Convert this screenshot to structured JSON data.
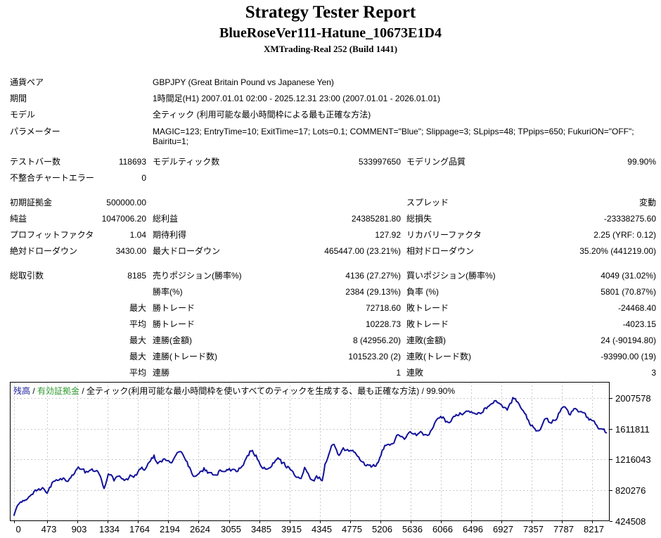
{
  "header": {
    "title": "Strategy Tester Report",
    "subtitle": "BlueRoseVer111-Hatune_10673E1D4",
    "server": "XMTrading-Real 252 (Build 1441)"
  },
  "report": {
    "summary_rows": [
      {
        "label": "通貨ペア",
        "value": "GBPJPY (Great Britain Pound vs Japanese Yen)"
      },
      {
        "label": "期間",
        "value": "1時間足(H1) 2007.01.01 02:00 - 2025.12.31 23:00 (2007.01.01 - 2026.01.01)"
      },
      {
        "label": "モデル",
        "value": "全ティック (利用可能な最小時間枠による最も正確な方法)"
      },
      {
        "label": "パラメーター",
        "lines": [
          "MAGIC=123; EntryTime=10; ExitTime=17; Lots=0.1; COMMENT=\"Blue\"; Slippage=3; SLpips=48; TPpips=650; FukuriON=\"OFF\";",
          "Bairitu=1;"
        ]
      }
    ],
    "stat_sections": [
      {
        "gap": 0,
        "rows": [
          {
            "c1l": "テストバー数",
            "c1v": "118693",
            "c2l": "モデルティック数",
            "c2v": "533997650",
            "c3l": "モデリング品質",
            "c3v": "99.90%"
          },
          {
            "c1l": "不整合チャートエラー",
            "c1v": "0",
            "c2l": "",
            "c2v": "",
            "c3l": "",
            "c3v": ""
          }
        ]
      },
      {
        "gap": 12,
        "rows": [
          {
            "c1l": "初期証拠金",
            "c1v": "500000.00",
            "c2l": "",
            "c2v": "",
            "c3l": "スプレッド",
            "c3v": "変動"
          },
          {
            "c1l": "純益",
            "c1v": "1047006.20",
            "c2l": "総利益",
            "c2v": "24385281.80",
            "c3l": "総損失",
            "c3v": "-23338275.60"
          },
          {
            "c1l": "プロフィットファクタ",
            "c1v": "1.04",
            "c2l": "期待利得",
            "c2v": "127.92",
            "c3l": "リカバリーファクタ",
            "c3v": "2.25 (YRF: 0.12)"
          },
          {
            "c1l": "絶対ドローダウン",
            "c1v": "3430.00",
            "c2l": "最大ドローダウン",
            "c2v": "465447.00 (23.21%)",
            "c3l": "相対ドローダウン",
            "c3v": "35.20% (441219.00)"
          }
        ]
      },
      {
        "gap": 12,
        "rows": [
          {
            "c1l": "総取引数",
            "c1v": "8185",
            "c2l": "売りポジション(勝率%)",
            "c2v": "4136 (27.27%)",
            "c3l": "買いポジション(勝率%)",
            "c3v": "4049 (31.02%)"
          },
          {
            "c1l": "",
            "c1v": "",
            "c2l": "勝率(%)",
            "c2v": "2384 (29.13%)",
            "c3l": "負率 (%)",
            "c3v": "5801 (70.87%)"
          },
          {
            "c1l": "",
            "c1v": "最大",
            "c2l": "勝トレード",
            "c2v": "72718.60",
            "c3l": "敗トレード",
            "c3v": "-24468.40"
          },
          {
            "c1l": "",
            "c1v": "平均",
            "c2l": "勝トレード",
            "c2v": "10228.73",
            "c3l": "敗トレード",
            "c3v": "-4023.15"
          },
          {
            "c1l": "",
            "c1v": "最大",
            "c2l": "連勝(金額)",
            "c2v": "8 (42956.20)",
            "c3l": "連敗(金額)",
            "c3v": "24 (-90194.80)"
          },
          {
            "c1l": "",
            "c1v": "最大",
            "c2l": "連勝(トレード数)",
            "c2v": "101523.20 (2)",
            "c3l": "連敗(トレード数)",
            "c3v": "-93990.00 (19)"
          },
          {
            "c1l": "",
            "c1v": "平均",
            "c2l": "連勝",
            "c2v": "1",
            "c3l": "連敗",
            "c3v": "3"
          }
        ]
      }
    ]
  },
  "chart_data": {
    "type": "line",
    "legend_parts": [
      {
        "text": "残高",
        "color": "#1c1c9c"
      },
      {
        "text": " / ",
        "color": "#000000"
      },
      {
        "text": "有効証拠金",
        "color": "#2f9a2f"
      },
      {
        "text": " / 全ティック(利用可能な最小時間枠を使いすべてのティックを生成する、最も正確な方法) / 99.90%",
        "color": "#000000"
      }
    ],
    "x_ticks": [
      0,
      473,
      903,
      1334,
      1764,
      2194,
      2624,
      3055,
      3485,
      3915,
      4345,
      4775,
      5206,
      5636,
      6066,
      6496,
      6927,
      7357,
      7787,
      8217
    ],
    "y_ticks": [
      424508,
      820276,
      1216043,
      1611811,
      2007578
    ],
    "y_domain": [
      424508,
      2215600
    ],
    "grid_on": true,
    "grid_color": "#c9c9c9",
    "border_color": "#000000",
    "series": [
      {
        "name": "残高",
        "color": "#12129a",
        "anchors": [
          [
            0,
            500000
          ],
          [
            40,
            610000
          ],
          [
            90,
            665000
          ],
          [
            160,
            700000
          ],
          [
            230,
            760000
          ],
          [
            320,
            815000
          ],
          [
            420,
            840000
          ],
          [
            470,
            820000
          ],
          [
            540,
            905000
          ],
          [
            620,
            950000
          ],
          [
            700,
            985000
          ],
          [
            770,
            940000
          ],
          [
            860,
            1040000
          ],
          [
            950,
            1115000
          ],
          [
            1010,
            1050000
          ],
          [
            1090,
            1085000
          ],
          [
            1160,
            1080000
          ],
          [
            1230,
            1000000
          ],
          [
            1280,
            860000
          ],
          [
            1340,
            1050000
          ],
          [
            1420,
            960000
          ],
          [
            1500,
            990000
          ],
          [
            1600,
            975000
          ],
          [
            1700,
            1020000
          ],
          [
            1780,
            1075000
          ],
          [
            1870,
            1115000
          ],
          [
            1940,
            1200000
          ],
          [
            1990,
            1250000
          ],
          [
            2040,
            1165000
          ],
          [
            2120,
            1205000
          ],
          [
            2200,
            1165000
          ],
          [
            2280,
            1240000
          ],
          [
            2340,
            1310000
          ],
          [
            2400,
            1280000
          ],
          [
            2460,
            1180000
          ],
          [
            2530,
            1035000
          ],
          [
            2610,
            1005000
          ],
          [
            2700,
            1100000
          ],
          [
            2770,
            1050000
          ],
          [
            2840,
            1025000
          ],
          [
            2910,
            1070000
          ],
          [
            2990,
            1055000
          ],
          [
            3060,
            1105000
          ],
          [
            3140,
            1075000
          ],
          [
            3220,
            1100000
          ],
          [
            3300,
            1230000
          ],
          [
            3370,
            1340000
          ],
          [
            3440,
            1270000
          ],
          [
            3520,
            1120000
          ],
          [
            3610,
            1085000
          ],
          [
            3680,
            1165000
          ],
          [
            3770,
            1210000
          ],
          [
            3840,
            1145000
          ],
          [
            3910,
            1120000
          ],
          [
            4000,
            1030000
          ],
          [
            4080,
            985000
          ],
          [
            4130,
            1090000
          ],
          [
            4230,
            945000
          ],
          [
            4300,
            990000
          ],
          [
            4380,
            950000
          ],
          [
            4420,
            1150000
          ],
          [
            4530,
            1430000
          ],
          [
            4620,
            1272000
          ],
          [
            4680,
            1370000
          ],
          [
            4760,
            1330000
          ],
          [
            4850,
            1300000
          ],
          [
            4950,
            1185000
          ],
          [
            5060,
            1120000
          ],
          [
            5160,
            1165000
          ],
          [
            5270,
            1390000
          ],
          [
            5380,
            1400000
          ],
          [
            5460,
            1545000
          ],
          [
            5550,
            1500000
          ],
          [
            5630,
            1585000
          ],
          [
            5720,
            1520000
          ],
          [
            5800,
            1575000
          ],
          [
            5880,
            1505000
          ],
          [
            5960,
            1650000
          ],
          [
            6030,
            1725000
          ],
          [
            6100,
            1750000
          ],
          [
            6170,
            1680000
          ],
          [
            6250,
            1780000
          ],
          [
            6320,
            1815000
          ],
          [
            6430,
            1840000
          ],
          [
            6520,
            1800000
          ],
          [
            6600,
            1820000
          ],
          [
            6700,
            1870000
          ],
          [
            6790,
            1960000
          ],
          [
            6850,
            1975000
          ],
          [
            6930,
            1885000
          ],
          [
            7010,
            1850000
          ],
          [
            7090,
            2000000
          ],
          [
            7160,
            1940000
          ],
          [
            7240,
            1820000
          ],
          [
            7330,
            1680000
          ],
          [
            7420,
            1600000
          ],
          [
            7460,
            1588000
          ],
          [
            7540,
            1720000
          ],
          [
            7620,
            1690000
          ],
          [
            7700,
            1760000
          ],
          [
            7780,
            1845000
          ],
          [
            7830,
            1910000
          ],
          [
            7890,
            1780000
          ],
          [
            7960,
            1865000
          ],
          [
            8040,
            1840000
          ],
          [
            8120,
            1780000
          ],
          [
            8210,
            1705000
          ],
          [
            8300,
            1650000
          ],
          [
            8420,
            1560000
          ]
        ]
      }
    ]
  }
}
